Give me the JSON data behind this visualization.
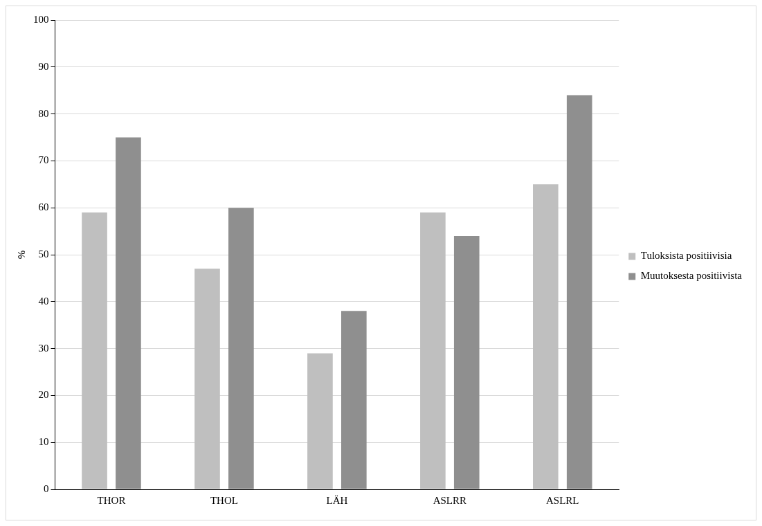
{
  "chart_data": {
    "type": "bar",
    "ylabel": "%",
    "categories": [
      "THOR",
      "THOL",
      "LÄH",
      "ASLRR",
      "ASLRL"
    ],
    "series": [
      {
        "name": "Tuloksista positiivisia",
        "color": "#bfbfbf",
        "values": [
          59,
          47,
          29,
          59,
          65
        ]
      },
      {
        "name": "Muutoksesta positiivista",
        "color": "#8f8f8f",
        "values": [
          75,
          60,
          38,
          54,
          84
        ]
      }
    ],
    "ylim": [
      0,
      100
    ],
    "yticks": [
      0,
      10,
      20,
      30,
      40,
      50,
      60,
      70,
      80,
      90,
      100
    ],
    "grid": "y",
    "legend": "right"
  }
}
